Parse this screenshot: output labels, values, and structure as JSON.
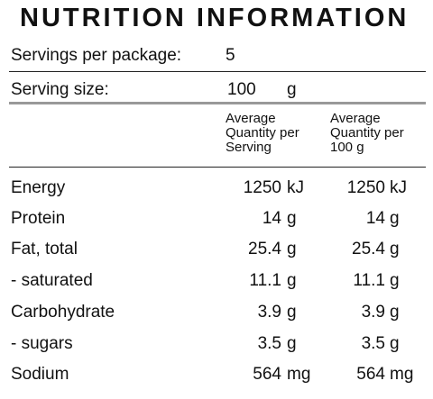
{
  "title": "NUTRITION INFORMATION",
  "servings_label": "Servings per package:",
  "servings_value": "5",
  "serving_size_label": "Serving size:",
  "serving_size_value": "100",
  "serving_size_unit": "g",
  "columns": {
    "per_serving": [
      "Average",
      "Quantity per",
      "Serving"
    ],
    "per_100g": [
      "Average",
      "Quantity per",
      "100 g"
    ]
  },
  "rows": [
    {
      "name": "Energy",
      "serving_value": "1250",
      "serving_unit": "kJ",
      "per100_value": "1250",
      "per100_unit": "kJ"
    },
    {
      "name": "Protein",
      "serving_value": "14",
      "serving_unit": "g",
      "per100_value": "14",
      "per100_unit": "g"
    },
    {
      "name": "Fat, total",
      "serving_value": "25.4",
      "serving_unit": "g",
      "per100_value": "25.4",
      "per100_unit": "g"
    },
    {
      "name": "- saturated",
      "serving_value": "11.1",
      "serving_unit": "g",
      "per100_value": "11.1",
      "per100_unit": "g"
    },
    {
      "name": "Carbohydrate",
      "serving_value": "3.9",
      "serving_unit": "g",
      "per100_value": "3.9",
      "per100_unit": "g"
    },
    {
      "name": "- sugars",
      "serving_value": "3.5",
      "serving_unit": "g",
      "per100_value": "3.5",
      "per100_unit": "g"
    },
    {
      "name": "Sodium",
      "serving_value": "564",
      "serving_unit": "mg",
      "per100_value": "564",
      "per100_unit": "mg"
    }
  ]
}
